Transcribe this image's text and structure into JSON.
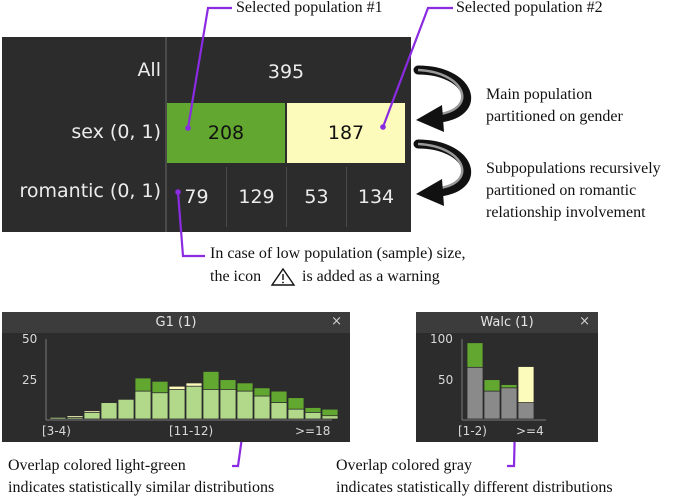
{
  "callouts": {
    "selected1": "Selected population #1",
    "selected2": "Selected population #2",
    "main_line1": "Main population",
    "main_line2": "partitioned on gender",
    "sub_line1": "Subpopulations recursively",
    "sub_line2": "partitioned on romantic",
    "sub_line3": "relationship involvement",
    "warn_line1": "In case of low population (sample) size,",
    "warn_line2_a": "the icon",
    "warn_line2_b": "is added as a warning",
    "lightgreen_line1": "Overlap colored light-green",
    "lightgreen_line2": "indicates statistically similar distributions",
    "gray_line1": "Overlap colored gray",
    "gray_line2": "indicates statistically different distributions"
  },
  "tree": {
    "rows": [
      {
        "label": "All"
      },
      {
        "label": "sex (0, 1)"
      },
      {
        "label": "romantic (0, 1)"
      }
    ],
    "all_value": "395",
    "sex_values": [
      "208",
      "187"
    ],
    "romantic_values": [
      "79",
      "129",
      "53",
      "134"
    ],
    "colors": {
      "selected1": "#62a730",
      "selected2": "#fdfbbb"
    }
  },
  "g1_panel": {
    "title": "G1 (1)",
    "close": "×",
    "y_ticks": [
      "50",
      "25"
    ],
    "x_ticks": [
      "[3-4)",
      "[11-12)",
      ">=18"
    ]
  },
  "walc_panel": {
    "title": "Walc (1)",
    "close": "×",
    "y_ticks": [
      "100",
      "50"
    ],
    "x_ticks": [
      "[1-2)",
      ">=4"
    ]
  },
  "chart_data": [
    {
      "type": "bar",
      "title": "G1 (1)",
      "ylim": [
        0,
        50
      ],
      "x_tick_labels": [
        "[3-4)",
        "[11-12)",
        ">=18"
      ],
      "series": [
        {
          "values": [
            1,
            1,
            4,
            10,
            12,
            25,
            23,
            18,
            20,
            29,
            24,
            22,
            19,
            17,
            13,
            7,
            6
          ]
        },
        {
          "values": [
            1,
            2,
            5,
            10,
            12,
            17,
            16,
            20,
            22,
            18,
            18,
            17,
            14,
            10,
            6,
            4,
            2
          ]
        }
      ],
      "overlap_colors": {
        "similar": "#b2d98a",
        "selected1": "#62a730",
        "selected2": "#fdfbbb"
      }
    },
    {
      "type": "bar",
      "title": "Walc (1)",
      "ylim": [
        0,
        100
      ],
      "x_tick_labels": [
        "[1-2)",
        ">=4"
      ],
      "series": [
        {
          "values": [
            93,
            48,
            42,
            20
          ]
        },
        {
          "values": [
            63,
            34,
            38,
            64
          ]
        }
      ],
      "overlap_colors": {
        "different": "#8a8a8a",
        "selected1": "#62a730",
        "selected2": "#fdfbbb"
      }
    }
  ]
}
